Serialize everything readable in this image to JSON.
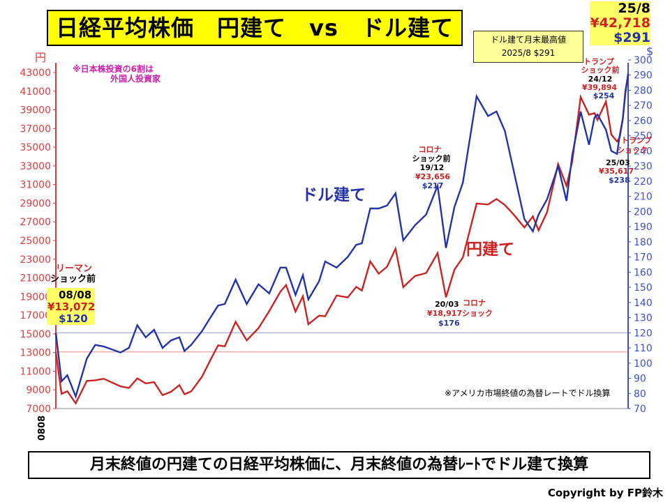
{
  "header": {
    "title": "日経平均株価　円建て　vs　ドル建て",
    "badge_line1": "ドル建て月末最高値",
    "badge_line2": "2025/8 $291",
    "latest_date": "25/8",
    "latest_yen": "¥42,718",
    "latest_usd": "$291"
  },
  "footer": {
    "caption": "月末終値の円建ての日経平均株価に、月末終値の為替ﾚｰﾄでドル建て換算",
    "copyright": "Copyright by FP鈴木"
  },
  "colors": {
    "yen": "#cc2222",
    "usd": "#2233aa",
    "yen_axis": "#e23b3b",
    "usd_axis": "#3b4fd0",
    "highlight": "#ffff66"
  },
  "chart_data": {
    "type": "line",
    "x_range": [
      2008.58,
      2025.58
    ],
    "x_tick_label": "0808",
    "left_axis": {
      "unit": "円",
      "min": 7000,
      "max": 43000,
      "step": 2000
    },
    "right_axis": {
      "unit": "$",
      "min": 70,
      "max": 300,
      "step": 10
    },
    "ref_lines": {
      "yen": 13072,
      "usd": 120
    },
    "series": [
      {
        "name": "円建て",
        "axis": "left",
        "points": [
          [
            2008.58,
            13072
          ],
          [
            2008.75,
            8576
          ],
          [
            2008.92,
            8860
          ],
          [
            2009.17,
            7568
          ],
          [
            2009.5,
            9958
          ],
          [
            2009.75,
            10034
          ],
          [
            2010.0,
            10198
          ],
          [
            2010.5,
            9382
          ],
          [
            2010.75,
            9202
          ],
          [
            2011.0,
            10237
          ],
          [
            2011.25,
            9696
          ],
          [
            2011.5,
            9833
          ],
          [
            2011.75,
            8434
          ],
          [
            2012.0,
            8800
          ],
          [
            2012.25,
            9520
          ],
          [
            2012.4,
            8542
          ],
          [
            2012.6,
            8840
          ],
          [
            2012.92,
            10395
          ],
          [
            2013.2,
            12398
          ],
          [
            2013.4,
            13775
          ],
          [
            2013.6,
            13668
          ],
          [
            2013.92,
            16291
          ],
          [
            2014.25,
            14304
          ],
          [
            2014.6,
            15619
          ],
          [
            2014.92,
            17451
          ],
          [
            2015.25,
            19520
          ],
          [
            2015.42,
            20236
          ],
          [
            2015.7,
            17388
          ],
          [
            2015.92,
            19034
          ],
          [
            2016.08,
            16027
          ],
          [
            2016.4,
            16955
          ],
          [
            2016.58,
            16887
          ],
          [
            2016.92,
            19114
          ],
          [
            2017.25,
            18909
          ],
          [
            2017.5,
            20033
          ],
          [
            2017.67,
            19646
          ],
          [
            2017.92,
            22765
          ],
          [
            2018.17,
            21454
          ],
          [
            2018.42,
            22202
          ],
          [
            2018.67,
            24120
          ],
          [
            2018.9,
            20014
          ],
          [
            2019.25,
            21206
          ],
          [
            2019.58,
            21521
          ],
          [
            2019.92,
            23656
          ],
          [
            2020.17,
            18917
          ],
          [
            2020.42,
            21878
          ],
          [
            2020.67,
            23185
          ],
          [
            2021.08,
            28966
          ],
          [
            2021.42,
            28860
          ],
          [
            2021.67,
            29452
          ],
          [
            2021.92,
            28792
          ],
          [
            2022.17,
            27821
          ],
          [
            2022.5,
            26393
          ],
          [
            2022.75,
            27587
          ],
          [
            2022.92,
            26094
          ],
          [
            2023.17,
            28041
          ],
          [
            2023.5,
            33189
          ],
          [
            2023.75,
            30858
          ],
          [
            2023.92,
            33464
          ],
          [
            2024.17,
            40369
          ],
          [
            2024.42,
            38487
          ],
          [
            2024.58,
            38648
          ],
          [
            2024.67,
            37919
          ],
          [
            2024.92,
            39894
          ],
          [
            2025.08,
            36356
          ],
          [
            2025.25,
            35617
          ],
          [
            2025.33,
            36045
          ],
          [
            2025.42,
            37965
          ],
          [
            2025.5,
            41069
          ],
          [
            2025.58,
            42718
          ]
        ]
      },
      {
        "name": "ドル建て",
        "axis": "right",
        "points": [
          [
            2008.58,
            120
          ],
          [
            2008.75,
            88
          ],
          [
            2008.92,
            92
          ],
          [
            2009.17,
            78
          ],
          [
            2009.5,
            103
          ],
          [
            2009.75,
            112
          ],
          [
            2010.0,
            111
          ],
          [
            2010.5,
            107
          ],
          [
            2010.75,
            110
          ],
          [
            2011.0,
            125
          ],
          [
            2011.25,
            117
          ],
          [
            2011.5,
            122
          ],
          [
            2011.75,
            110
          ],
          [
            2012.0,
            115
          ],
          [
            2012.25,
            117
          ],
          [
            2012.4,
            108
          ],
          [
            2012.6,
            112
          ],
          [
            2012.92,
            121
          ],
          [
            2013.2,
            131
          ],
          [
            2013.4,
            138
          ],
          [
            2013.6,
            139
          ],
          [
            2013.92,
            155
          ],
          [
            2014.25,
            139
          ],
          [
            2014.6,
            152
          ],
          [
            2014.92,
            146
          ],
          [
            2015.25,
            163
          ],
          [
            2015.42,
            163
          ],
          [
            2015.7,
            145
          ],
          [
            2015.92,
            158
          ],
          [
            2016.08,
            142
          ],
          [
            2016.4,
            154
          ],
          [
            2016.58,
            167
          ],
          [
            2016.92,
            163
          ],
          [
            2017.25,
            170
          ],
          [
            2017.5,
            178
          ],
          [
            2017.67,
            179
          ],
          [
            2017.92,
            202
          ],
          [
            2018.17,
            202
          ],
          [
            2018.42,
            204
          ],
          [
            2018.67,
            212
          ],
          [
            2018.9,
            181
          ],
          [
            2019.25,
            191
          ],
          [
            2019.58,
            198
          ],
          [
            2019.92,
            217
          ],
          [
            2020.17,
            176
          ],
          [
            2020.42,
            203
          ],
          [
            2020.67,
            219
          ],
          [
            2021.08,
            276
          ],
          [
            2021.42,
            263
          ],
          [
            2021.67,
            266
          ],
          [
            2021.92,
            253
          ],
          [
            2022.17,
            228
          ],
          [
            2022.5,
            195
          ],
          [
            2022.75,
            187
          ],
          [
            2022.92,
            198
          ],
          [
            2023.17,
            208
          ],
          [
            2023.5,
            230
          ],
          [
            2023.75,
            207
          ],
          [
            2023.92,
            237
          ],
          [
            2024.17,
            266
          ],
          [
            2024.42,
            244
          ],
          [
            2024.58,
            262
          ],
          [
            2024.67,
            264
          ],
          [
            2024.92,
            254
          ],
          [
            2025.08,
            240
          ],
          [
            2025.25,
            238
          ],
          [
            2025.33,
            250
          ],
          [
            2025.42,
            261
          ],
          [
            2025.5,
            278
          ],
          [
            2025.58,
            291
          ]
        ]
      }
    ],
    "series_labels": {
      "usd": "ドル建て",
      "yen": "円建て"
    },
    "annotations": {
      "note_investors": [
        "※日本株投資の6割は",
        "外国人投資家"
      ],
      "note_fx": "※アメリカ市場終値の為替レートでドル換算",
      "lehman": {
        "event1": "リーマン",
        "event2": "ショック前",
        "date": "08/08",
        "yen": "¥13,072",
        "usd": "$120"
      },
      "corona_before": {
        "event1": "コロナ",
        "event2": "ショック前",
        "date": "19/12",
        "yen": "¥23,656",
        "usd": "$217"
      },
      "corona": {
        "event1": "コロナ",
        "event2": "ショック",
        "date": "20/03",
        "yen": "¥18,917",
        "usd": "$176"
      },
      "trump_before": {
        "event1": "トランプ",
        "event2": "ショック前",
        "date": "24/12",
        "yen": "¥39,894",
        "usd": "$254"
      },
      "trump": {
        "event1": "トランプ",
        "event2": "ショック",
        "date": "25/03",
        "yen": "¥35,617",
        "usd": "$238"
      }
    }
  }
}
